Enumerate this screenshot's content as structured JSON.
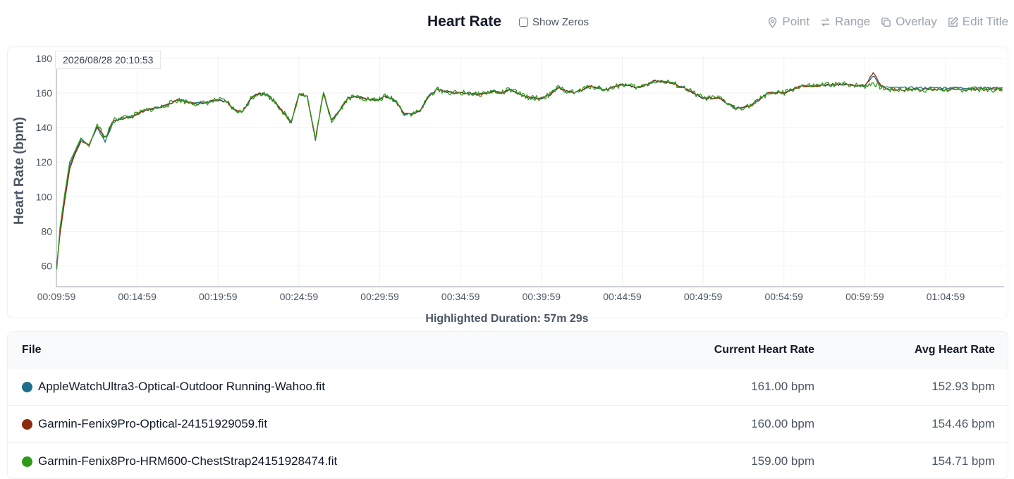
{
  "header": {
    "title": "Heart Rate",
    "show_zeros_label": "Show Zeros",
    "tools": [
      {
        "label": "Point",
        "icon": "map-pin-icon"
      },
      {
        "label": "Range",
        "icon": "arrows-swap-icon"
      },
      {
        "label": "Overlay",
        "icon": "copy-icon"
      },
      {
        "label": "Edit Title",
        "icon": "edit-icon"
      }
    ]
  },
  "tooltip": {
    "timestamp": "2026/08/28 20:10:53"
  },
  "highlight": {
    "text": "Highlighted Duration: 57m 29s"
  },
  "chart_data": {
    "type": "line",
    "ylabel": "Heart Rate (bpm)",
    "xlabel": "",
    "ylim": [
      48,
      182
    ],
    "yticks": [
      60,
      80,
      100,
      120,
      140,
      160,
      180
    ],
    "x_unit": "minutes of elapsed time",
    "xlim": [
      9.98,
      68.6
    ],
    "xtick_labels": [
      "00:09:59",
      "00:14:59",
      "00:19:59",
      "00:24:59",
      "00:29:59",
      "00:34:59",
      "00:39:59",
      "00:44:59",
      "00:49:59",
      "00:54:59",
      "00:59:59",
      "01:04:59"
    ],
    "xtick_values": [
      9.98,
      14.98,
      19.98,
      24.98,
      29.98,
      34.98,
      39.98,
      44.98,
      49.98,
      54.98,
      59.98,
      64.98
    ],
    "grid": true,
    "legend": "none",
    "x": [
      10.0,
      10.2,
      10.5,
      10.8,
      11.1,
      11.5,
      12.0,
      12.5,
      13.0,
      13.5,
      14.0,
      14.5,
      15.0,
      15.5,
      16.0,
      16.5,
      17.0,
      17.5,
      18.0,
      18.5,
      19.0,
      19.5,
      20.0,
      20.5,
      21.0,
      21.5,
      22.0,
      22.5,
      23.0,
      23.5,
      24.0,
      24.5,
      25.0,
      25.5,
      26.0,
      26.5,
      27.0,
      27.5,
      28.0,
      28.5,
      29.0,
      29.5,
      29.9,
      30.3,
      30.7,
      31.0,
      31.5,
      32.0,
      32.5,
      33.0,
      33.5,
      34.0,
      34.5,
      35.0,
      35.5,
      36.0,
      36.5,
      37.0,
      37.5,
      38.0,
      38.5,
      39.0,
      39.5,
      40.0,
      40.5,
      41.0,
      42.0,
      43.0,
      44.0,
      45.0,
      46.0,
      47.0,
      48.0,
      49.0,
      50.0,
      51.0,
      52.0,
      53.0,
      54.0,
      55.0,
      56.0,
      57.0,
      58.0,
      59.0,
      60.0,
      60.5,
      61.0,
      61.5,
      62.0,
      63.0,
      64.0,
      65.0,
      66.0,
      66.5,
      67.0,
      67.5,
      68.0,
      68.5
    ],
    "series": [
      {
        "name": "AppleWatchUltra3-Optical-Outdoor Running-Wahoo.fit",
        "color": "#1f6f8b",
        "values": [
          60,
          80,
          100,
          118,
          125,
          133,
          130,
          140,
          132,
          143,
          146,
          146,
          148,
          150,
          151,
          152,
          154,
          156,
          155,
          154,
          154,
          155,
          156,
          155,
          150,
          149,
          157,
          160,
          159,
          155,
          149,
          143,
          160,
          158,
          133,
          160,
          144,
          150,
          157,
          158,
          157,
          156,
          156,
          158,
          157,
          155,
          148,
          148,
          150,
          158,
          162,
          161,
          160,
          160,
          160,
          159,
          160,
          161,
          160,
          162,
          160,
          158,
          157,
          157,
          159,
          163,
          160,
          164,
          162,
          165,
          163,
          167,
          166,
          162,
          157,
          157,
          151,
          153,
          160,
          160,
          164,
          164,
          165,
          165,
          164,
          170,
          164,
          163,
          163,
          163,
          163,
          163,
          163,
          163,
          163,
          163,
          163,
          163
        ]
      },
      {
        "name": "Garmin-Fenix9Pro-Optical-24151929059.fit",
        "color": "#8b2a0c",
        "values": [
          60,
          78,
          98,
          116,
          124,
          132,
          130,
          141,
          134,
          144,
          145,
          146,
          148,
          150,
          151,
          152,
          154,
          156,
          155,
          154,
          154,
          155,
          156,
          155,
          150,
          149,
          157,
          160,
          159,
          155,
          149,
          143,
          160,
          158,
          133,
          160,
          144,
          150,
          157,
          158,
          157,
          156,
          156,
          158,
          157,
          155,
          148,
          148,
          150,
          158,
          162,
          161,
          160,
          160,
          160,
          159,
          160,
          161,
          160,
          162,
          160,
          158,
          157,
          157,
          159,
          163,
          160,
          164,
          162,
          165,
          163,
          167,
          166,
          162,
          157,
          157,
          151,
          153,
          160,
          160,
          164,
          164,
          165,
          165,
          164,
          172,
          164,
          162,
          162,
          162,
          162,
          162,
          162,
          162,
          162,
          162,
          162,
          162
        ]
      },
      {
        "name": "Garmin-Fenix8Pro-HRM600-ChestStrap24151928474.fit",
        "color": "#2f9a1a",
        "values": [
          58,
          82,
          102,
          120,
          126,
          134,
          129,
          142,
          134,
          144,
          146,
          146,
          148,
          150,
          151,
          152,
          154,
          156,
          155,
          154,
          154,
          155,
          156,
          155,
          150,
          149,
          157,
          160,
          159,
          155,
          149,
          143,
          160,
          158,
          133,
          160,
          144,
          150,
          157,
          158,
          157,
          156,
          156,
          158,
          157,
          155,
          148,
          148,
          150,
          158,
          162,
          161,
          160,
          160,
          160,
          159,
          160,
          161,
          160,
          162,
          160,
          158,
          157,
          157,
          159,
          163,
          160,
          164,
          162,
          165,
          163,
          167,
          166,
          162,
          157,
          157,
          151,
          153,
          160,
          160,
          164,
          164,
          165,
          165,
          164,
          166,
          163,
          162,
          162,
          162,
          162,
          162,
          162,
          162,
          162,
          162,
          162,
          162
        ]
      }
    ]
  },
  "table": {
    "headers": {
      "file": "File",
      "current": "Current Heart Rate",
      "avg": "Avg Heart Rate"
    },
    "rows": [
      {
        "file": "AppleWatchUltra3-Optical-Outdoor Running-Wahoo.fit",
        "color": "#1f6f8b",
        "current": "161.00 bpm",
        "avg": "152.93 bpm"
      },
      {
        "file": "Garmin-Fenix9Pro-Optical-24151929059.fit",
        "color": "#8b2a0c",
        "current": "160.00 bpm",
        "avg": "154.46 bpm"
      },
      {
        "file": "Garmin-Fenix8Pro-HRM600-ChestStrap24151928474.fit",
        "color": "#2f9a1a",
        "current": "159.00 bpm",
        "avg": "154.71 bpm"
      }
    ]
  }
}
